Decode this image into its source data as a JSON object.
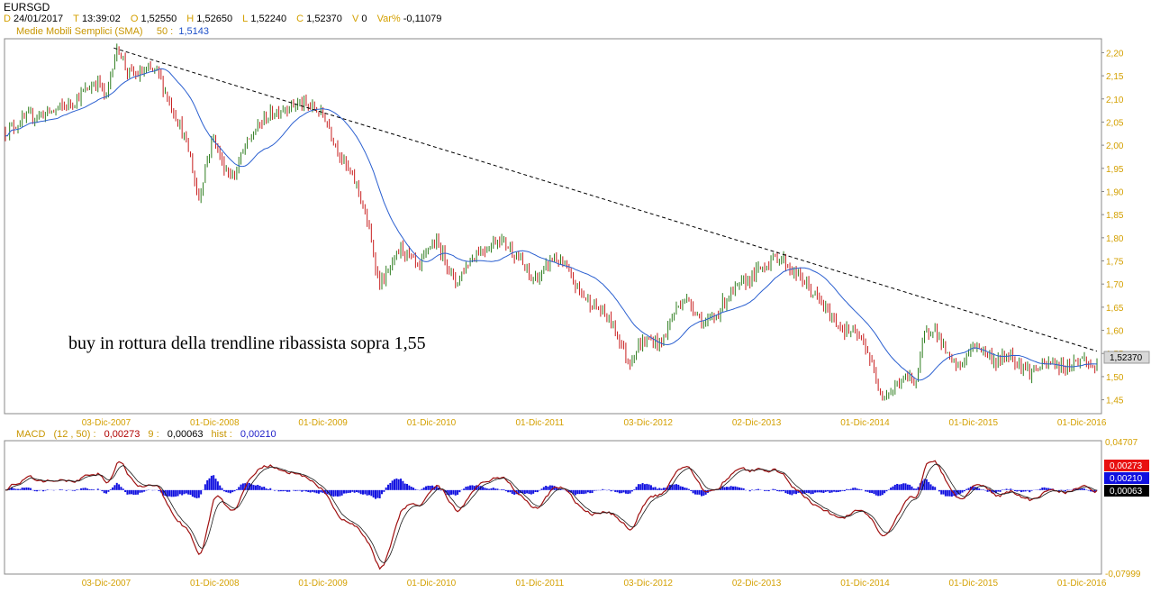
{
  "header": {
    "symbol": "EURSGD",
    "date_key": "D",
    "date": "24/01/2017",
    "time_key": "T",
    "time": "13:39:02",
    "open_key": "O",
    "open": "1,52550",
    "high_key": "H",
    "high": "1,52650",
    "low_key": "L",
    "low": "1,52240",
    "close_key": "C",
    "close": "1,52370",
    "vol_key": "V",
    "vol": "0",
    "var_key": "Var%",
    "var": "-0,11079"
  },
  "indicator_sma": {
    "label": "Medie Mobili Semplici (SMA)",
    "period": "50 :",
    "value": "1,5143"
  },
  "annotation": "buy in rottura della trendline ribassista sopra 1,55",
  "price_badge": "1,52370",
  "x_ticks": [
    "03-Dic-2007",
    "01-Dic-2008",
    "01-Dic-2009",
    "01-Dic-2010",
    "01-Dic-2011",
    "03-Dic-2012",
    "02-Dic-2013",
    "01-Dic-2014",
    "01-Dic-2015",
    "01-Dic-2016"
  ],
  "macd": {
    "label": "MACD",
    "params": "(12 , 50) :",
    "macd_value": "0,00273",
    "signal_label": "9 :",
    "signal_value": "0,00063",
    "hist_label": "hist :",
    "hist_value": "0,00210",
    "y_max_label": "0,04707",
    "y_min_label": "-0,07999",
    "badges": [
      "0,00273",
      "0,00210",
      "0,00063"
    ]
  },
  "colors": {
    "up": "#2e7d1e",
    "down": "#c81e1e",
    "sma": "#2a5fd0",
    "macd": "#a01010",
    "signal": "#1a1a1a",
    "hist": "#1010e0",
    "axis_text": "#d4a000",
    "grid": "#888888"
  },
  "chart_data": {
    "type": "line",
    "series_desc": "EURSGD daily candlesticks with SMA(50), dashed descending trendline",
    "ylim": [
      1.42,
      2.23
    ],
    "y_ticks": [
      "2,20",
      "2,15",
      "2,10",
      "2,05",
      "2,00",
      "1,95",
      "1,90",
      "1,85",
      "1,80",
      "1,75",
      "1,70",
      "1,65",
      "1,60",
      "1,55",
      "1,50",
      "1,45"
    ],
    "x_ticks": [
      "03-Dic-2007",
      "01-Dic-2008",
      "01-Dic-2009",
      "01-Dic-2010",
      "01-Dic-2011",
      "03-Dic-2012",
      "02-Dic-2013",
      "01-Dic-2014",
      "01-Dic-2015",
      "01-Dic-2016"
    ],
    "x_range": [
      2007.0,
      2017.07
    ],
    "close": [
      [
        2007.0,
        2.03
      ],
      [
        2007.2,
        2.06
      ],
      [
        2007.4,
        2.07
      ],
      [
        2007.6,
        2.09
      ],
      [
        2007.75,
        2.12
      ],
      [
        2007.85,
        2.14
      ],
      [
        2007.93,
        2.1
      ],
      [
        2008.0,
        2.19
      ],
      [
        2008.05,
        2.21
      ],
      [
        2008.12,
        2.16
      ],
      [
        2008.2,
        2.15
      ],
      [
        2008.3,
        2.16
      ],
      [
        2008.4,
        2.16
      ],
      [
        2008.5,
        2.1
      ],
      [
        2008.6,
        2.05
      ],
      [
        2008.7,
        1.98
      ],
      [
        2008.78,
        1.88
      ],
      [
        2008.85,
        1.96
      ],
      [
        2008.92,
        2.02
      ],
      [
        2009.0,
        1.96
      ],
      [
        2009.1,
        1.93
      ],
      [
        2009.2,
        1.99
      ],
      [
        2009.3,
        2.03
      ],
      [
        2009.4,
        2.06
      ],
      [
        2009.55,
        2.08
      ],
      [
        2009.7,
        2.09
      ],
      [
        2009.85,
        2.08
      ],
      [
        2009.95,
        2.06
      ],
      [
        2010.05,
        2.0
      ],
      [
        2010.15,
        1.95
      ],
      [
        2010.25,
        1.91
      ],
      [
        2010.35,
        1.82
      ],
      [
        2010.45,
        1.7
      ],
      [
        2010.55,
        1.73
      ],
      [
        2010.65,
        1.78
      ],
      [
        2010.75,
        1.75
      ],
      [
        2010.82,
        1.73
      ],
      [
        2010.9,
        1.78
      ],
      [
        2010.97,
        1.79
      ],
      [
        2011.05,
        1.76
      ],
      [
        2011.15,
        1.7
      ],
      [
        2011.25,
        1.74
      ],
      [
        2011.35,
        1.77
      ],
      [
        2011.45,
        1.78
      ],
      [
        2011.55,
        1.8
      ],
      [
        2011.65,
        1.78
      ],
      [
        2011.75,
        1.75
      ],
      [
        2011.85,
        1.71
      ],
      [
        2011.95,
        1.72
      ],
      [
        2012.05,
        1.76
      ],
      [
        2012.15,
        1.74
      ],
      [
        2012.25,
        1.7
      ],
      [
        2012.35,
        1.67
      ],
      [
        2012.45,
        1.65
      ],
      [
        2012.55,
        1.63
      ],
      [
        2012.65,
        1.59
      ],
      [
        2012.75,
        1.53
      ],
      [
        2012.85,
        1.57
      ],
      [
        2012.95,
        1.58
      ],
      [
        2013.05,
        1.57
      ],
      [
        2013.15,
        1.63
      ],
      [
        2013.25,
        1.67
      ],
      [
        2013.35,
        1.65
      ],
      [
        2013.45,
        1.61
      ],
      [
        2013.55,
        1.63
      ],
      [
        2013.65,
        1.67
      ],
      [
        2013.75,
        1.69
      ],
      [
        2013.85,
        1.71
      ],
      [
        2013.95,
        1.73
      ],
      [
        2014.05,
        1.75
      ],
      [
        2014.15,
        1.76
      ],
      [
        2014.25,
        1.73
      ],
      [
        2014.35,
        1.71
      ],
      [
        2014.45,
        1.68
      ],
      [
        2014.55,
        1.65
      ],
      [
        2014.65,
        1.62
      ],
      [
        2014.75,
        1.6
      ],
      [
        2014.85,
        1.59
      ],
      [
        2014.95,
        1.56
      ],
      [
        2015.02,
        1.5
      ],
      [
        2015.1,
        1.46
      ],
      [
        2015.18,
        1.47
      ],
      [
        2015.26,
        1.49
      ],
      [
        2015.34,
        1.5
      ],
      [
        2015.4,
        1.49
      ],
      [
        2015.48,
        1.59
      ],
      [
        2015.56,
        1.61
      ],
      [
        2015.64,
        1.57
      ],
      [
        2015.72,
        1.53
      ],
      [
        2015.8,
        1.52
      ],
      [
        2015.88,
        1.55
      ],
      [
        2015.96,
        1.57
      ],
      [
        2016.05,
        1.55
      ],
      [
        2016.15,
        1.53
      ],
      [
        2016.25,
        1.55
      ],
      [
        2016.35,
        1.53
      ],
      [
        2016.45,
        1.51
      ],
      [
        2016.55,
        1.52
      ],
      [
        2016.65,
        1.53
      ],
      [
        2016.75,
        1.52
      ],
      [
        2016.85,
        1.53
      ],
      [
        2016.95,
        1.54
      ],
      [
        2017.02,
        1.52
      ],
      [
        2017.07,
        1.524
      ]
    ],
    "trendline": [
      [
        2008.0,
        2.21
      ],
      [
        2017.07,
        1.555
      ]
    ],
    "sma_last": 1.5143,
    "macd_ylim": [
      -0.07999,
      0.04707
    ]
  }
}
